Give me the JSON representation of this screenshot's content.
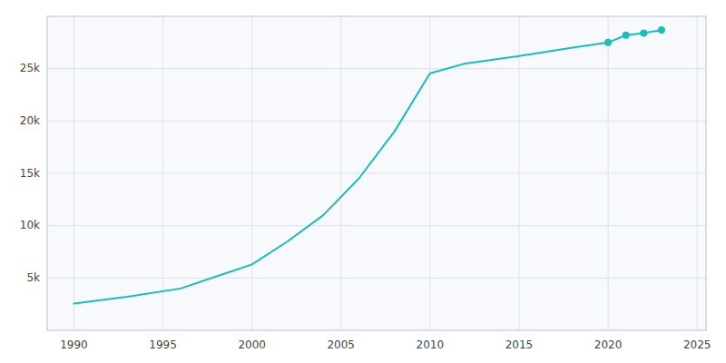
{
  "chart_data": {
    "type": "line",
    "x": [
      1990,
      1993,
      1996,
      2000,
      2002,
      2004,
      2006,
      2008,
      2010,
      2012,
      2015,
      2018,
      2020,
      2021,
      2022,
      2023
    ],
    "series": [
      {
        "color": "#17bebb",
        "values": [
          2548,
          3200,
          4000,
          6300,
          8500,
          11000,
          14500,
          19000,
          24561,
          25500,
          26200,
          27000,
          27500,
          28200,
          28400,
          28700
        ]
      },
      {
        "color": "#17bebb",
        "marker": "circle",
        "line_style": "none",
        "values": [
          null,
          null,
          null,
          null,
          null,
          null,
          null,
          null,
          null,
          null,
          null,
          null,
          27500,
          28200,
          28400,
          28700
        ]
      }
    ],
    "xlim": [
      1988.5,
      2025.5
    ],
    "ylim": [
      0,
      30000
    ],
    "xticks": [
      1990,
      1995,
      2000,
      2005,
      2010,
      2015,
      2020,
      2025
    ],
    "yticks": [
      {
        "value": 5000,
        "label": "5k"
      },
      {
        "value": 10000,
        "label": "10k"
      },
      {
        "value": 15000,
        "label": "15k"
      },
      {
        "value": 20000,
        "label": "20k"
      },
      {
        "value": 25000,
        "label": "25k"
      }
    ],
    "grid": true
  }
}
